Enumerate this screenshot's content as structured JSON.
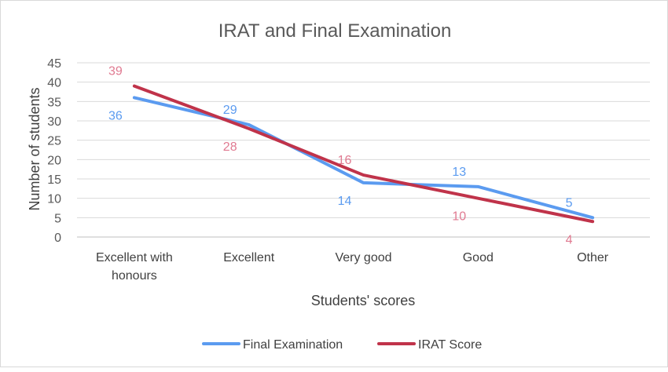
{
  "chart_data": {
    "type": "line",
    "title": "IRAT and Final Examination",
    "xlabel": "Students' scores",
    "ylabel": "Number of students",
    "categories": [
      [
        "Excellent with",
        "honours"
      ],
      [
        "Excellent"
      ],
      [
        "Very good"
      ],
      [
        "Good"
      ],
      [
        "Other"
      ]
    ],
    "ylim": [
      0,
      45
    ],
    "yticks": [
      0,
      5,
      10,
      15,
      20,
      25,
      30,
      35,
      40,
      45
    ],
    "grid": true,
    "legend_position": "bottom",
    "series": [
      {
        "name": "Final Examination",
        "values": [
          36,
          29,
          14,
          13,
          5
        ],
        "color": "#5b9bf0",
        "label_color": "#5b9bf0",
        "label_pos": [
          "below",
          "above",
          "below",
          "above",
          "above"
        ]
      },
      {
        "name": "IRAT Score",
        "values": [
          39,
          28,
          16,
          10,
          4
        ],
        "color": "#c0334a",
        "label_color": "#e07a91",
        "label_pos": [
          "above",
          "below",
          "above",
          "below",
          "below"
        ]
      }
    ]
  }
}
